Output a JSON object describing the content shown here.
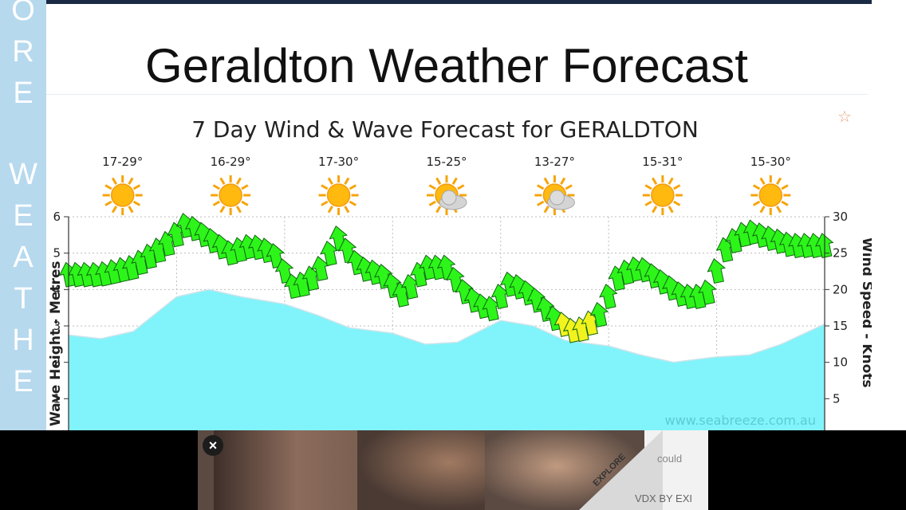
{
  "sidebar": {
    "letters": [
      "O",
      "R",
      "E",
      "W",
      "E",
      "A",
      "T",
      "H",
      "E"
    ]
  },
  "page": {
    "title": "Geraldton Weather Forecast"
  },
  "chart_data": {
    "type": "area",
    "title": "7 Day Wind & Wave Forecast for GERALDTON",
    "ylabel_left": "Wave Height - Metres",
    "ylabel_right": "Wind Speed - Knots",
    "watermark": "www.seabreeze.com.au",
    "ylim_left": [
      0,
      6
    ],
    "ylim_right": [
      0,
      30
    ],
    "yticks_left": [
      1,
      2,
      3,
      4,
      5,
      6
    ],
    "yticks_right": [
      5,
      10,
      15,
      20,
      25,
      30
    ],
    "grid": true,
    "days": [
      {
        "temp": "17-29°",
        "icon": "sunny-icon"
      },
      {
        "temp": "16-29°",
        "icon": "sunny-icon"
      },
      {
        "temp": "17-30°",
        "icon": "sunny-icon"
      },
      {
        "temp": "15-25°",
        "icon": "partly-cloudy-icon"
      },
      {
        "temp": "13-27°",
        "icon": "partly-cloudy-icon"
      },
      {
        "temp": "15-31°",
        "icon": "sunny-icon"
      },
      {
        "temp": "15-30°",
        "icon": "sunny-icon"
      }
    ],
    "wave": {
      "name": "Wave Height",
      "x": [
        0,
        0.3,
        0.6,
        1.0,
        1.3,
        1.6,
        2.0,
        2.3,
        2.6,
        3.0,
        3.3,
        3.6,
        4.0,
        4.3,
        4.6,
        5.0,
        5.3,
        5.6,
        6.0,
        6.3,
        6.6,
        7.0
      ],
      "values": [
        2.75,
        2.65,
        2.85,
        3.8,
        4.0,
        3.8,
        3.6,
        3.3,
        2.95,
        2.8,
        2.5,
        2.55,
        3.15,
        3.0,
        2.6,
        2.45,
        2.2,
        2.0,
        2.15,
        2.2,
        2.5,
        3.05
      ],
      "color": "#80f4fa"
    },
    "wind": {
      "name": "Wind Speed",
      "x": [
        0,
        0.3,
        0.6,
        0.9,
        1.1,
        1.3,
        1.5,
        1.7,
        1.9,
        2.1,
        2.3,
        2.5,
        2.7,
        2.9,
        3.1,
        3.3,
        3.5,
        3.7,
        3.9,
        4.1,
        4.3,
        4.5,
        4.7,
        4.9,
        5.1,
        5.3,
        5.5,
        5.7,
        5.9,
        6.1,
        6.3,
        6.5,
        6.7,
        6.9,
        7.0
      ],
      "values": [
        22,
        22,
        23,
        26,
        29,
        27,
        25,
        26,
        25,
        20,
        22,
        27,
        23,
        22,
        19,
        23,
        23,
        19,
        17,
        21,
        19,
        16,
        14,
        16,
        22,
        23,
        21,
        19,
        19,
        26,
        28,
        27,
        26,
        26,
        26
      ],
      "color_calm": "#2df51a",
      "color_light": "#f2f21e",
      "light_threshold": 16
    }
  },
  "ad": {
    "close_label": "×",
    "explore_label": "EXPLORE",
    "brand": "could",
    "footer": "VDX BY EXI"
  }
}
